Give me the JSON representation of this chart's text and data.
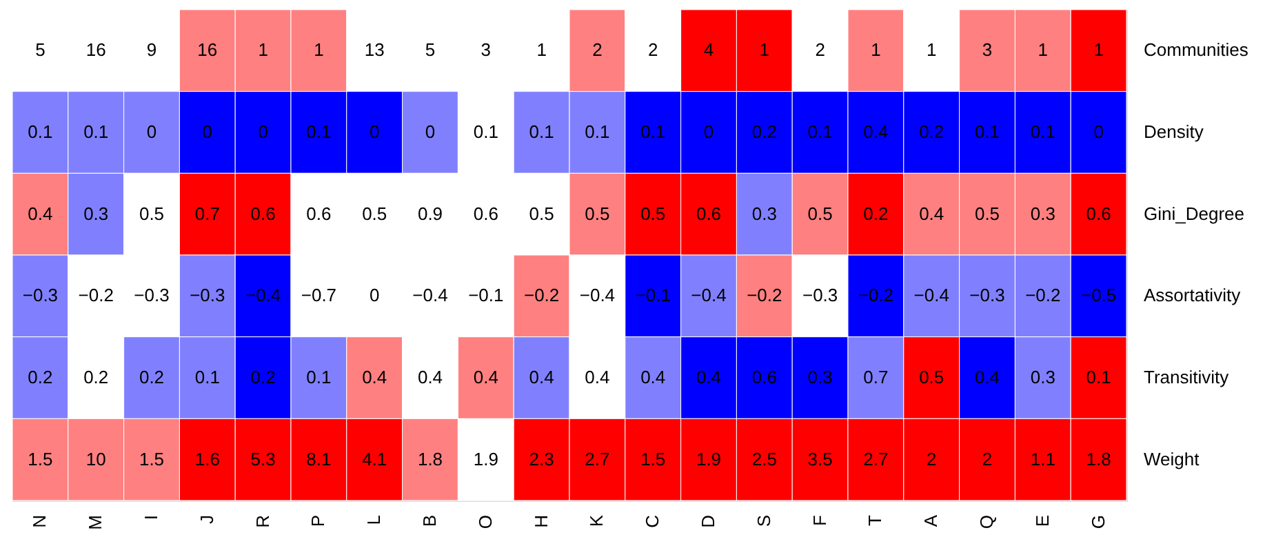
{
  "chart_data": {
    "type": "heatmap",
    "categories": [
      "N",
      "M",
      "I",
      "J",
      "R",
      "P",
      "L",
      "B",
      "O",
      "H",
      "K",
      "C",
      "D",
      "S",
      "F",
      "T",
      "A",
      "Q",
      "E",
      "G"
    ],
    "y_categories": [
      "Communities",
      "Density",
      "Gini_Degree",
      "Assortativity",
      "Transitivity",
      "Weight"
    ],
    "cells": [
      [
        5,
        16,
        9,
        16,
        1,
        1,
        13,
        5,
        3,
        1,
        2,
        2,
        4,
        1,
        2,
        1,
        1,
        3,
        1,
        1
      ],
      [
        0.1,
        0.1,
        0,
        0,
        0,
        0.1,
        0,
        0,
        0.1,
        0.1,
        0.1,
        0.1,
        0,
        0.2,
        0.1,
        0.4,
        0.2,
        0.1,
        0.1,
        0
      ],
      [
        0.4,
        0.3,
        0.5,
        0.7,
        0.6,
        0.6,
        0.5,
        0.9,
        0.6,
        0.5,
        0.5,
        0.5,
        0.6,
        0.3,
        0.5,
        0.2,
        0.4,
        0.5,
        0.3,
        0.6
      ],
      [
        -0.3,
        -0.2,
        -0.3,
        -0.3,
        -0.4,
        -0.7,
        0,
        -0.4,
        -0.1,
        -0.2,
        -0.4,
        -0.1,
        -0.4,
        -0.2,
        -0.3,
        -0.2,
        -0.4,
        -0.3,
        -0.2,
        -0.5
      ],
      [
        0.2,
        0.2,
        0.2,
        0.1,
        0.2,
        0.1,
        0.4,
        0.4,
        0.4,
        0.4,
        0.4,
        0.4,
        0.4,
        0.6,
        0.3,
        0.7,
        0.5,
        0.4,
        0.3,
        0.1
      ],
      [
        1.5,
        10,
        1.5,
        1.6,
        5.3,
        8.1,
        4.1,
        1.8,
        1.9,
        2.3,
        2.7,
        1.5,
        1.9,
        2.5,
        3.5,
        2.7,
        2,
        2,
        1.1,
        1.8
      ]
    ],
    "data_labels": true,
    "colors": [
      [
        "#ffffff",
        "#ffffff",
        "#ffffff",
        "#ff8080",
        "#ff8080",
        "#ff8080",
        "#ffffff",
        "#ffffff",
        "#ffffff",
        "#ffffff",
        "#ff8080",
        "#ffffff",
        "#ff0000",
        "#ff0000",
        "#ffffff",
        "#ff8080",
        "#ffffff",
        "#ff8080",
        "#ff8080",
        "#ff0000"
      ],
      [
        "#8080ff",
        "#8080ff",
        "#8080ff",
        "#0000ff",
        "#0000ff",
        "#0000ff",
        "#0000ff",
        "#8080ff",
        "#ffffff",
        "#8080ff",
        "#8080ff",
        "#0000ff",
        "#0000ff",
        "#0000ff",
        "#0000ff",
        "#0000ff",
        "#0000ff",
        "#0000ff",
        "#0000ff",
        "#0000ff"
      ],
      [
        "#ff8080",
        "#8080ff",
        "#ffffff",
        "#ff0000",
        "#ff0000",
        "#ffffff",
        "#ffffff",
        "#ffffff",
        "#ffffff",
        "#ffffff",
        "#ff8080",
        "#ff0000",
        "#ff0000",
        "#8080ff",
        "#ff8080",
        "#ff0000",
        "#ff8080",
        "#ff8080",
        "#ff8080",
        "#ff0000"
      ],
      [
        "#8080ff",
        "#ffffff",
        "#ffffff",
        "#8080ff",
        "#0000ff",
        "#ffffff",
        "#ffffff",
        "#ffffff",
        "#ffffff",
        "#ff8080",
        "#ffffff",
        "#0000ff",
        "#8080ff",
        "#ff8080",
        "#ffffff",
        "#0000ff",
        "#8080ff",
        "#8080ff",
        "#8080ff",
        "#0000ff"
      ],
      [
        "#8080ff",
        "#ffffff",
        "#8080ff",
        "#8080ff",
        "#0000ff",
        "#8080ff",
        "#ff8080",
        "#ffffff",
        "#ff8080",
        "#8080ff",
        "#ffffff",
        "#8080ff",
        "#0000ff",
        "#0000ff",
        "#0000ff",
        "#8080ff",
        "#ff0000",
        "#0000ff",
        "#8080ff",
        "#ff0000"
      ],
      [
        "#ff8080",
        "#ff8080",
        "#ff8080",
        "#ff0000",
        "#ff0000",
        "#ff0000",
        "#ff0000",
        "#ff8080",
        "#ffffff",
        "#ff0000",
        "#ff0000",
        "#ff0000",
        "#ff0000",
        "#ff0000",
        "#ff0000",
        "#ff0000",
        "#ff0000",
        "#ff0000",
        "#ff0000",
        "#ff0000"
      ]
    ]
  }
}
